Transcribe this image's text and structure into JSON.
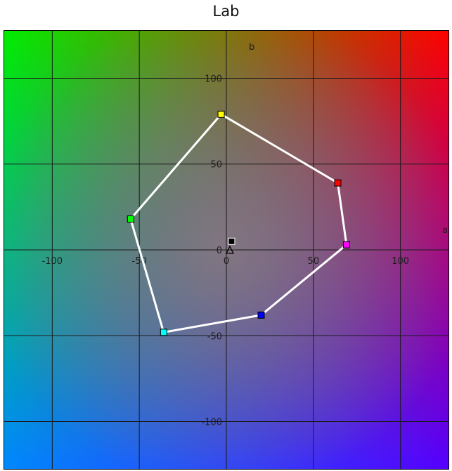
{
  "chart_data": {
    "type": "scatter",
    "title": "Lab",
    "xlabel": "a",
    "ylabel": "b",
    "xlim": [
      -128,
      128
    ],
    "ylim": [
      -128,
      128
    ],
    "grid": true,
    "x_ticks": [
      -100,
      -50,
      0,
      50,
      100
    ],
    "y_ticks": [
      100,
      50,
      0,
      -50,
      -100
    ],
    "tick_labels": {
      "x": [
        "-100",
        "-50",
        "0",
        "50",
        "100"
      ],
      "y": [
        "100",
        "50",
        "0",
        "-50",
        "-100"
      ]
    },
    "gamut": {
      "closed": true,
      "line_color": "#ffffff",
      "points": [
        {
          "a": -3,
          "b": 79,
          "color": "#ffff00"
        },
        {
          "a": 64,
          "b": 39,
          "color": "#ff0000"
        },
        {
          "a": 69,
          "b": 3,
          "color": "#ff00ff"
        },
        {
          "a": 20,
          "b": -38,
          "color": "#0000ff"
        },
        {
          "a": -36,
          "b": -48,
          "color": "#00ffff"
        },
        {
          "a": -55,
          "b": 18,
          "color": "#00ff00"
        }
      ]
    },
    "extra_points": [
      {
        "a": 3,
        "b": 5,
        "color": "#000000",
        "marker": "square"
      },
      {
        "a": 2,
        "b": 0,
        "color": "#000000",
        "marker": "triangle"
      }
    ],
    "background_corners": {
      "top_left": "#00ee00",
      "top_right": "#ff0000",
      "bottom_left": "#0088ff",
      "bottom_right": "#5500ff",
      "center": "#8a7a82"
    }
  }
}
